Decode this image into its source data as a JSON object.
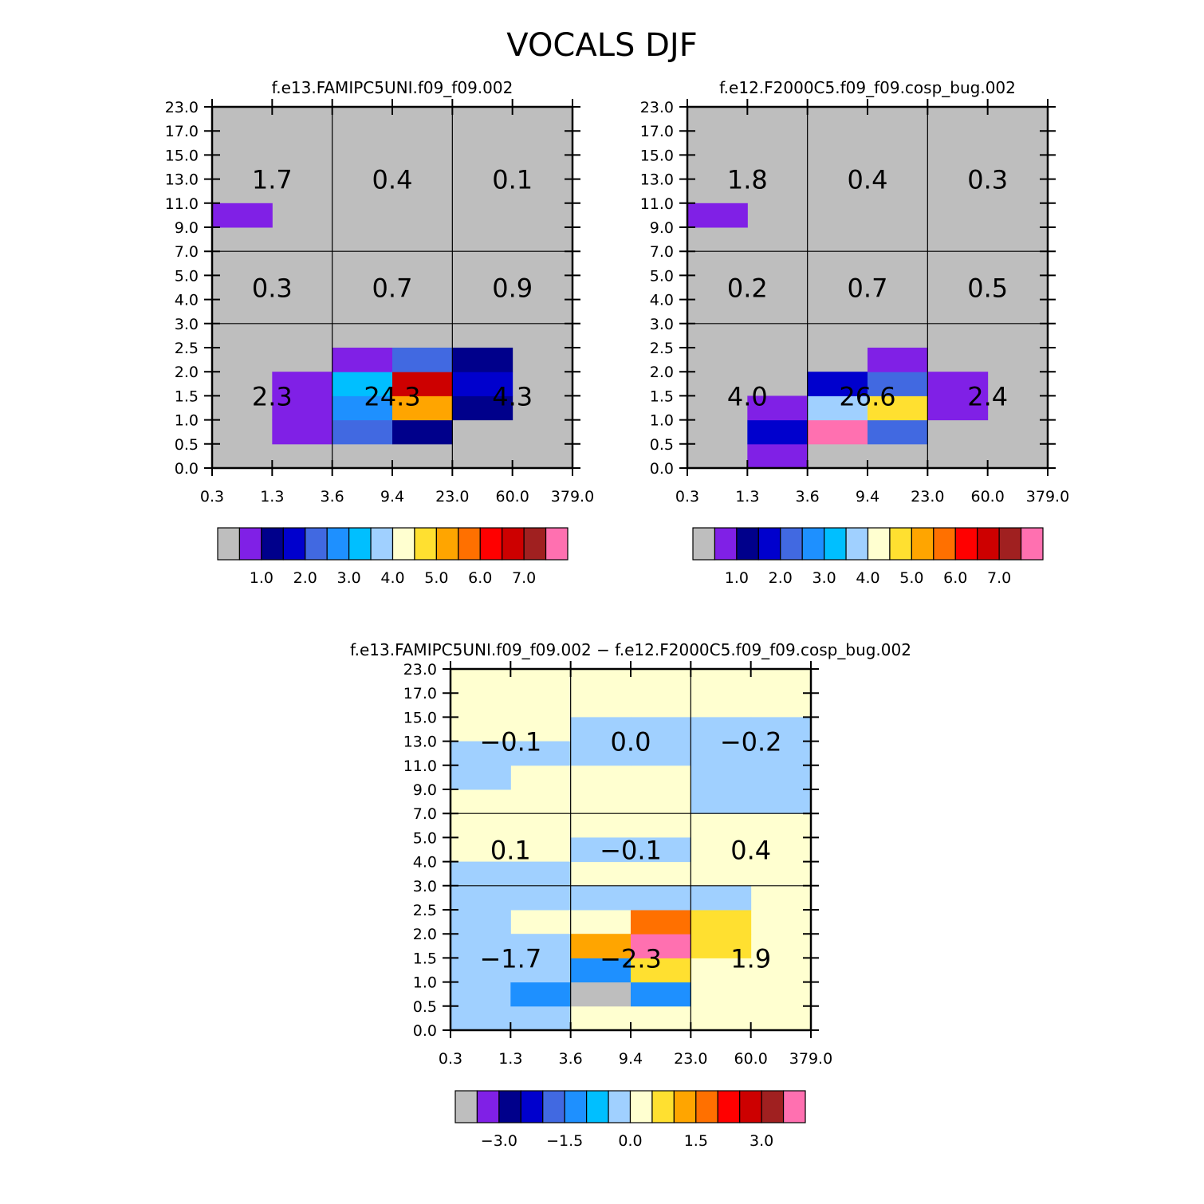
{
  "title": "VOCALS DJF",
  "chart_data": [
    {
      "type": "heatmap",
      "title": "f.e13.FAMIPC5UNI.f09_f09.002",
      "x_ticks": [
        "0.3",
        "1.3",
        "3.6",
        "9.4",
        "23.0",
        "60.0",
        "379.0"
      ],
      "y_ticks": [
        "0.0",
        "0.5",
        "1.0",
        "1.5",
        "2.0",
        "2.5",
        "3.0",
        "4.0",
        "5.0",
        "7.0",
        "9.0",
        "11.0",
        "13.0",
        "15.0",
        "17.0",
        "23.0"
      ],
      "colorbar": {
        "colors": [
          "#bebebe",
          "#8020e6",
          "#00008b",
          "#0000cd",
          "#4169e1",
          "#1e90ff",
          "#00bfff",
          "#a0d0ff",
          "#ffffd0",
          "#ffe030",
          "#ffa500",
          "#ff7000",
          "#ff0000",
          "#cd0000",
          "#a02020",
          "#ff70b0"
        ],
        "labels": [
          "1.0",
          "2.0",
          "3.0",
          "4.0",
          "5.0",
          "6.0",
          "7.0"
        ],
        "label_positions": [
          2,
          4,
          6,
          8,
          10,
          12,
          14
        ]
      },
      "background": "#bebebe",
      "cells": [
        {
          "x": 0,
          "y": 10,
          "color": "#8020e6"
        },
        {
          "x": 1,
          "y": 1,
          "color": "#8020e6"
        },
        {
          "x": 1,
          "y": 2,
          "color": "#8020e6"
        },
        {
          "x": 1,
          "y": 3,
          "color": "#8020e6"
        },
        {
          "x": 2,
          "y": 1,
          "color": "#4169e1"
        },
        {
          "x": 2,
          "y": 2,
          "color": "#1e90ff"
        },
        {
          "x": 2,
          "y": 3,
          "color": "#00bfff"
        },
        {
          "x": 2,
          "y": 4,
          "color": "#8020e6"
        },
        {
          "x": 3,
          "y": 1,
          "color": "#00008b"
        },
        {
          "x": 3,
          "y": 2,
          "color": "#ffa500"
        },
        {
          "x": 3,
          "y": 3,
          "color": "#cd0000"
        },
        {
          "x": 3,
          "y": 4,
          "color": "#4169e1"
        },
        {
          "x": 4,
          "y": 2,
          "color": "#00008b"
        },
        {
          "x": 4,
          "y": 3,
          "color": "#0000cd"
        },
        {
          "x": 4,
          "y": 4,
          "color": "#00008b"
        }
      ],
      "regions": [
        {
          "x0": 0,
          "x1": 2,
          "y0": 12,
          "value": "1.7"
        },
        {
          "x0": 2,
          "x1": 4,
          "y0": 12,
          "value": "0.4"
        },
        {
          "x0": 4,
          "x1": 6,
          "y0": 12,
          "value": "0.1"
        },
        {
          "x0": 0,
          "x1": 2,
          "y0": 7.5,
          "value": "0.3"
        },
        {
          "x0": 2,
          "x1": 4,
          "y0": 7.5,
          "value": "0.7"
        },
        {
          "x0": 4,
          "x1": 6,
          "y0": 7.5,
          "value": "0.9"
        },
        {
          "x0": 0,
          "x1": 2,
          "y0": 3,
          "value": "2.3"
        },
        {
          "x0": 2,
          "x1": 4,
          "y0": 3,
          "value": "24.3"
        },
        {
          "x0": 4,
          "x1": 6,
          "y0": 3,
          "value": "4.3"
        }
      ]
    },
    {
      "type": "heatmap",
      "title": "f.e12.F2000C5.f09_f09.cosp_bug.002",
      "x_ticks": [
        "0.3",
        "1.3",
        "3.6",
        "9.4",
        "23.0",
        "60.0",
        "379.0"
      ],
      "y_ticks": [
        "0.0",
        "0.5",
        "1.0",
        "1.5",
        "2.0",
        "2.5",
        "3.0",
        "4.0",
        "5.0",
        "7.0",
        "9.0",
        "11.0",
        "13.0",
        "15.0",
        "17.0",
        "23.0"
      ],
      "colorbar": {
        "colors": [
          "#bebebe",
          "#8020e6",
          "#00008b",
          "#0000cd",
          "#4169e1",
          "#1e90ff",
          "#00bfff",
          "#a0d0ff",
          "#ffffd0",
          "#ffe030",
          "#ffa500",
          "#ff7000",
          "#ff0000",
          "#cd0000",
          "#a02020",
          "#ff70b0"
        ],
        "labels": [
          "1.0",
          "2.0",
          "3.0",
          "4.0",
          "5.0",
          "6.0",
          "7.0"
        ],
        "label_positions": [
          2,
          4,
          6,
          8,
          10,
          12,
          14
        ]
      },
      "background": "#bebebe",
      "cells": [
        {
          "x": 0,
          "y": 10,
          "color": "#8020e6"
        },
        {
          "x": 1,
          "y": 0,
          "color": "#8020e6"
        },
        {
          "x": 1,
          "y": 1,
          "color": "#0000cd"
        },
        {
          "x": 1,
          "y": 2,
          "color": "#8020e6"
        },
        {
          "x": 2,
          "y": 1,
          "color": "#ff70b0"
        },
        {
          "x": 2,
          "y": 2,
          "color": "#a0d0ff"
        },
        {
          "x": 2,
          "y": 3,
          "color": "#0000cd"
        },
        {
          "x": 3,
          "y": 1,
          "color": "#4169e1"
        },
        {
          "x": 3,
          "y": 2,
          "color": "#ffe030"
        },
        {
          "x": 3,
          "y": 3,
          "color": "#4169e1"
        },
        {
          "x": 3,
          "y": 4,
          "color": "#8020e6"
        },
        {
          "x": 4,
          "y": 2,
          "color": "#8020e6"
        },
        {
          "x": 4,
          "y": 3,
          "color": "#8020e6"
        }
      ],
      "regions": [
        {
          "x0": 0,
          "x1": 2,
          "y0": 12,
          "value": "1.8"
        },
        {
          "x0": 2,
          "x1": 4,
          "y0": 12,
          "value": "0.4"
        },
        {
          "x0": 4,
          "x1": 6,
          "y0": 12,
          "value": "0.3"
        },
        {
          "x0": 0,
          "x1": 2,
          "y0": 7.5,
          "value": "0.2"
        },
        {
          "x0": 2,
          "x1": 4,
          "y0": 7.5,
          "value": "0.7"
        },
        {
          "x0": 4,
          "x1": 6,
          "y0": 7.5,
          "value": "0.5"
        },
        {
          "x0": 0,
          "x1": 2,
          "y0": 3,
          "value": "4.0"
        },
        {
          "x0": 2,
          "x1": 4,
          "y0": 3,
          "value": "26.6"
        },
        {
          "x0": 4,
          "x1": 6,
          "y0": 3,
          "value": "2.4"
        }
      ]
    },
    {
      "type": "heatmap",
      "title": "f.e13.FAMIPC5UNI.f09_f09.002 − f.e12.F2000C5.f09_f09.cosp_bug.002",
      "x_ticks": [
        "0.3",
        "1.3",
        "3.6",
        "9.4",
        "23.0",
        "60.0",
        "379.0"
      ],
      "y_ticks": [
        "0.0",
        "0.5",
        "1.0",
        "1.5",
        "2.0",
        "2.5",
        "3.0",
        "4.0",
        "5.0",
        "7.0",
        "9.0",
        "11.0",
        "13.0",
        "15.0",
        "17.0",
        "23.0"
      ],
      "colorbar": {
        "colors": [
          "#bebebe",
          "#8020e6",
          "#00008b",
          "#0000cd",
          "#4169e1",
          "#1e90ff",
          "#00bfff",
          "#a0d0ff",
          "#ffffd0",
          "#ffe030",
          "#ffa500",
          "#ff7000",
          "#ff0000",
          "#cd0000",
          "#a02020",
          "#ff70b0"
        ],
        "labels": [
          "−3.0",
          "−1.5",
          "0.0",
          "1.5",
          "3.0"
        ],
        "label_positions": [
          2,
          5,
          8,
          11,
          14
        ]
      },
      "background": "#ffffd0",
      "cells": [
        {
          "x": 0,
          "y": 0,
          "color": "#a0d0ff"
        },
        {
          "x": 0,
          "y": 1,
          "color": "#a0d0ff"
        },
        {
          "x": 0,
          "y": 2,
          "color": "#a0d0ff"
        },
        {
          "x": 0,
          "y": 3,
          "color": "#a0d0ff"
        },
        {
          "x": 0,
          "y": 4,
          "color": "#a0d0ff"
        },
        {
          "x": 0,
          "y": 5,
          "color": "#a0d0ff"
        },
        {
          "x": 1,
          "y": 0,
          "color": "#a0d0ff"
        },
        {
          "x": 1,
          "y": 1,
          "color": "#1e90ff"
        },
        {
          "x": 1,
          "y": 2,
          "color": "#a0d0ff"
        },
        {
          "x": 1,
          "y": 3,
          "color": "#a0d0ff"
        },
        {
          "x": 1,
          "y": 5,
          "color": "#a0d0ff"
        },
        {
          "x": 0,
          "y": 6,
          "color": "#a0d0ff"
        },
        {
          "x": 1,
          "y": 6,
          "color": "#a0d0ff"
        },
        {
          "x": 0,
          "y": 10,
          "color": "#a0d0ff"
        },
        {
          "x": 0,
          "y": 11,
          "color": "#a0d0ff"
        },
        {
          "x": 1,
          "y": 11,
          "color": "#a0d0ff"
        },
        {
          "x": 2,
          "y": 1,
          "color": "#bebebe"
        },
        {
          "x": 2,
          "y": 2,
          "color": "#1e90ff"
        },
        {
          "x": 2,
          "y": 3,
          "color": "#ffa500"
        },
        {
          "x": 2,
          "y": 5,
          "color": "#a0d0ff"
        },
        {
          "x": 3,
          "y": 1,
          "color": "#1e90ff"
        },
        {
          "x": 3,
          "y": 2,
          "color": "#ffe030"
        },
        {
          "x": 3,
          "y": 3,
          "color": "#ff70b0"
        },
        {
          "x": 3,
          "y": 4,
          "color": "#ff7000"
        },
        {
          "x": 3,
          "y": 5,
          "color": "#a0d0ff"
        },
        {
          "x": 2,
          "y": 7,
          "color": "#a0d0ff"
        },
        {
          "x": 3,
          "y": 7,
          "color": "#a0d0ff"
        },
        {
          "x": 2,
          "y": 11,
          "color": "#a0d0ff"
        },
        {
          "x": 2,
          "y": 12,
          "color": "#a0d0ff"
        },
        {
          "x": 3,
          "y": 11,
          "color": "#a0d0ff"
        },
        {
          "x": 3,
          "y": 12,
          "color": "#a0d0ff"
        },
        {
          "x": 4,
          "y": 3,
          "color": "#ffe030"
        },
        {
          "x": 4,
          "y": 4,
          "color": "#ffe030"
        },
        {
          "x": 4,
          "y": 5,
          "color": "#a0d0ff"
        },
        {
          "x": 4,
          "y": 9,
          "color": "#a0d0ff"
        },
        {
          "x": 4,
          "y": 10,
          "color": "#a0d0ff"
        },
        {
          "x": 4,
          "y": 11,
          "color": "#a0d0ff"
        },
        {
          "x": 4,
          "y": 12,
          "color": "#a0d0ff"
        },
        {
          "x": 5,
          "y": 9,
          "color": "#a0d0ff"
        },
        {
          "x": 5,
          "y": 10,
          "color": "#a0d0ff"
        },
        {
          "x": 5,
          "y": 11,
          "color": "#a0d0ff"
        },
        {
          "x": 5,
          "y": 12,
          "color": "#a0d0ff"
        }
      ],
      "regions": [
        {
          "x0": 0,
          "x1": 2,
          "y0": 12,
          "value": "−0.1"
        },
        {
          "x0": 2,
          "x1": 4,
          "y0": 12,
          "value": "0.0"
        },
        {
          "x0": 4,
          "x1": 6,
          "y0": 12,
          "value": "−0.2"
        },
        {
          "x0": 0,
          "x1": 2,
          "y0": 7.5,
          "value": "0.1"
        },
        {
          "x0": 2,
          "x1": 4,
          "y0": 7.5,
          "value": "−0.1"
        },
        {
          "x0": 4,
          "x1": 6,
          "y0": 7.5,
          "value": "0.4"
        },
        {
          "x0": 0,
          "x1": 2,
          "y0": 3,
          "value": "−1.7"
        },
        {
          "x0": 2,
          "x1": 4,
          "y0": 3,
          "value": "−2.3"
        },
        {
          "x0": 4,
          "x1": 6,
          "y0": 3,
          "value": "1.9"
        }
      ]
    }
  ]
}
